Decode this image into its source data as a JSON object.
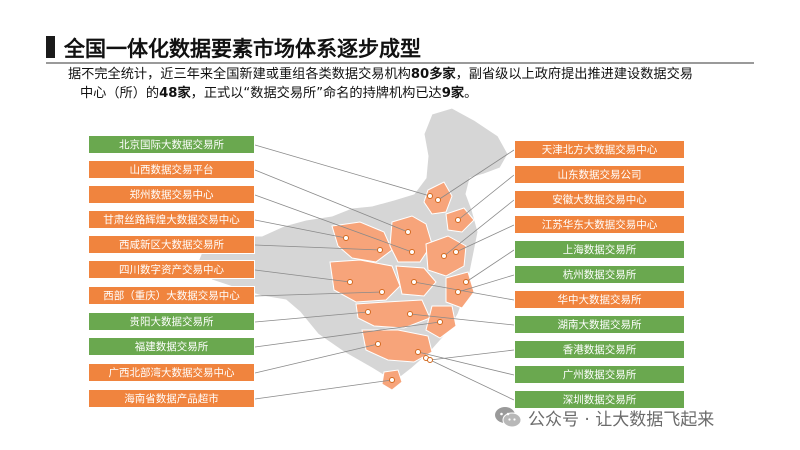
{
  "title": "全国一体化数据要素市场体系逐步成型",
  "intro": {
    "p1": "据不完全统计，近三年来全国新建或重组各类数据交易机构",
    "n1": "80多家",
    "p2": "，副省级以上政府提出推进建设数据交易",
    "p3": "中心（所）的",
    "n2": "48家",
    "p4": "，正式以“数据交易所”命名的持牌机构已达",
    "n3": "9家",
    "p5": "。"
  },
  "left_labels": [
    {
      "text": "北京国际大数据交易所",
      "color": "green"
    },
    {
      "text": "山西数据交易平台",
      "color": "orange"
    },
    {
      "text": "郑州数据交易中心",
      "color": "orange"
    },
    {
      "text": "甘肃丝路辉煌大数据交易中心",
      "color": "orange"
    },
    {
      "text": "西咸新区大数据交易所",
      "color": "orange"
    },
    {
      "text": "四川数字资产交易中心",
      "color": "orange"
    },
    {
      "text": "西部（重庆）大数据交易中心",
      "color": "orange"
    },
    {
      "text": "贵阳大数据交易所",
      "color": "green"
    },
    {
      "text": "福建数据交易所",
      "color": "green"
    },
    {
      "text": "广西北部湾大数据交易中心",
      "color": "orange"
    },
    {
      "text": "海南省数据产品超市",
      "color": "orange"
    }
  ],
  "right_labels": [
    {
      "text": "天津北方大数据交易中心",
      "color": "orange"
    },
    {
      "text": "山东数据交易公司",
      "color": "orange"
    },
    {
      "text": "安徽大数据交易中心",
      "color": "orange"
    },
    {
      "text": "江苏华东大数据交易中心",
      "color": "orange"
    },
    {
      "text": "上海数据交易所",
      "color": "green"
    },
    {
      "text": "杭州数据交易所",
      "color": "green"
    },
    {
      "text": "华中大数据交易所",
      "color": "orange"
    },
    {
      "text": "湖南大数据交易所",
      "color": "green"
    },
    {
      "text": "香港数据交易所",
      "color": "green"
    },
    {
      "text": "广州数据交易所",
      "color": "green"
    },
    {
      "text": "深圳数据交易所",
      "color": "green"
    }
  ],
  "watermark": "公众号 · 让大数据飞起来",
  "colors": {
    "green": "#6aa84f",
    "orange": "#f0843e",
    "map_gray": "#d6d6d6",
    "map_orange": "#f7a47a"
  }
}
